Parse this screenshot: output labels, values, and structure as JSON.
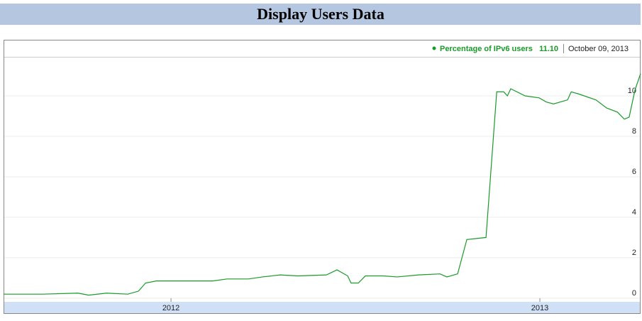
{
  "chart_data": {
    "type": "line",
    "title": "Display Users Data",
    "current_label": "11.10",
    "current_date": "October 09, 2013",
    "series": [
      {
        "name": "Percentage of IPv6 users",
        "color": "#1a9a2a",
        "x": [
          2012.046,
          2012.152,
          2012.248,
          2012.277,
          2012.325,
          2012.383,
          2012.412,
          2012.431,
          2012.46,
          2012.537,
          2012.613,
          2012.652,
          2012.71,
          2012.748,
          2012.796,
          2012.844,
          2012.921,
          2012.95,
          2012.979,
          2012.988,
          2013.008,
          2013.027,
          2013.075,
          2013.113,
          2013.171,
          2013.229,
          2013.248,
          2013.277,
          2013.302,
          2013.354,
          2013.383,
          2013.402,
          2013.412,
          2013.421,
          2013.46,
          2013.498,
          2013.517,
          2013.537,
          2013.575,
          2013.585,
          2013.604,
          2013.652,
          2013.681,
          2013.71,
          2013.729,
          2013.742,
          2013.758,
          2013.773
        ],
        "values": [
          0.2,
          0.2,
          0.25,
          0.15,
          0.25,
          0.2,
          0.35,
          0.75,
          0.85,
          0.85,
          0.85,
          0.95,
          0.95,
          1.05,
          1.15,
          1.1,
          1.15,
          1.4,
          1.1,
          0.75,
          0.75,
          1.1,
          1.1,
          1.05,
          1.15,
          1.2,
          1.05,
          1.2,
          2.9,
          3.0,
          10.2,
          10.2,
          10.0,
          10.35,
          10.0,
          9.9,
          9.7,
          9.6,
          9.8,
          10.2,
          10.1,
          9.8,
          9.4,
          9.2,
          8.85,
          8.95,
          10.3,
          11.1
        ]
      }
    ],
    "xlim": [
      2012.046,
      2013.773
    ],
    "xticks": [
      {
        "value": 2012.5,
        "label": "2012"
      },
      {
        "value": 2013.5,
        "label": "2013"
      }
    ],
    "ylim": [
      -0.18,
      11.93
    ],
    "yticks": [
      0,
      2,
      4,
      6,
      8,
      10
    ],
    "grid": true
  }
}
